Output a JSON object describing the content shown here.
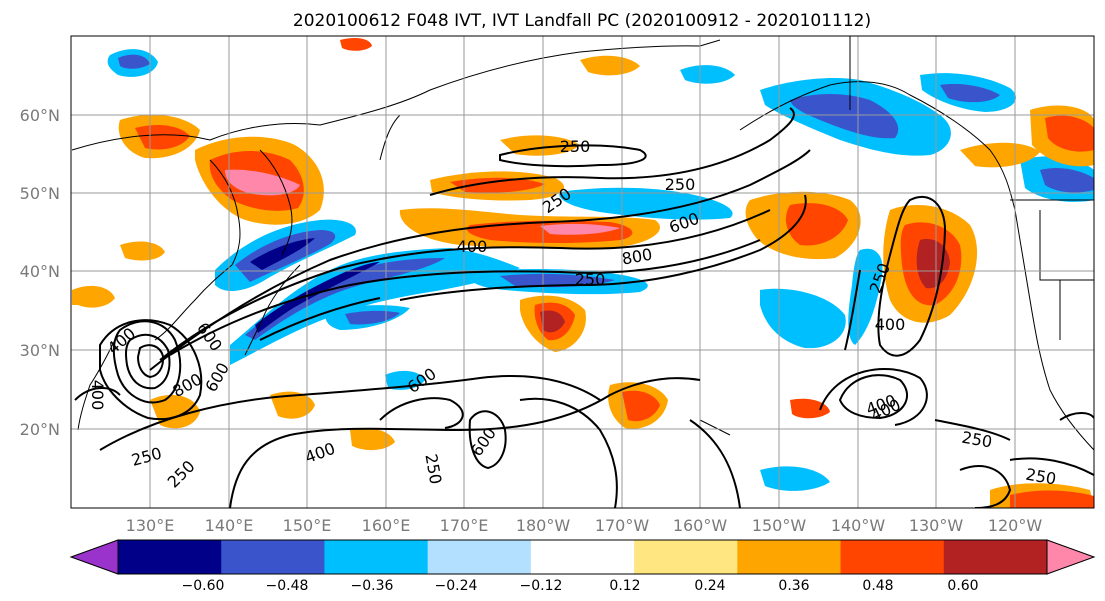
{
  "title": "2020100612 F048 IVT, IVT Landfall PC (2020100912 - 2020101112)",
  "lat_labels": [
    "60°N",
    "50°N",
    "40°N",
    "30°N",
    "20°N"
  ],
  "lon_labels": [
    "130°E",
    "140°E",
    "150°E",
    "160°E",
    "170°E",
    "180°W",
    "170°W",
    "160°W",
    "150°W",
    "140°W",
    "130°W",
    "120°W"
  ],
  "colorbar": {
    "colors": [
      "#9933cc",
      "#000088",
      "#3a55cc",
      "#00bfff",
      "#b3e0ff",
      "#ffffff",
      "#ffe680",
      "#ffa500",
      "#ff4500",
      "#b22222",
      "#ff88aa"
    ],
    "tick_labels": [
      "−0.60",
      "−0.48",
      "−0.36",
      "−0.24",
      "−0.12",
      "0.12",
      "0.24",
      "0.36",
      "0.48",
      "0.60"
    ]
  },
  "contour_labels": [
    "250",
    "250",
    "250",
    "600",
    "400",
    "800",
    "250",
    "400",
    "600",
    "800",
    "400",
    "600",
    "600",
    "600",
    "400",
    "250",
    "250",
    "250",
    "400",
    "250",
    "250",
    "250",
    "400",
    "400"
  ]
}
